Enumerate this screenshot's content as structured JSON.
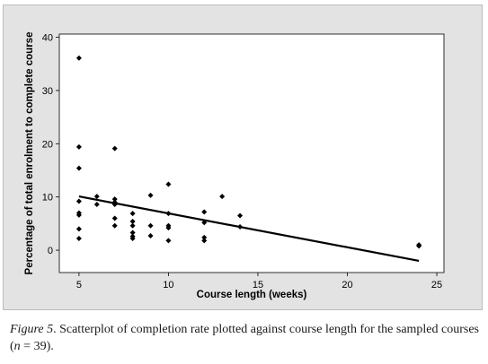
{
  "chart_data": {
    "type": "scatter",
    "title": "",
    "xlabel": "Course length (weeks)",
    "ylabel": "Percentage of total enrolment to complete course",
    "xlim": [
      3.9,
      25.4
    ],
    "ylim": [
      -4.2,
      40.6
    ],
    "xticks": [
      5,
      10,
      15,
      20,
      25
    ],
    "yticks": [
      0,
      10,
      20,
      30,
      40
    ],
    "grid": false,
    "legend": "none",
    "marker_color": "#000000",
    "points": [
      {
        "x": 5,
        "y": 36.1
      },
      {
        "x": 5,
        "y": 19.4
      },
      {
        "x": 5,
        "y": 15.4
      },
      {
        "x": 5,
        "y": 9.2
      },
      {
        "x": 5,
        "y": 7.0
      },
      {
        "x": 5,
        "y": 6.6
      },
      {
        "x": 5,
        "y": 4.0
      },
      {
        "x": 5,
        "y": 2.2
      },
      {
        "x": 6,
        "y": 10.1
      },
      {
        "x": 6,
        "y": 8.6
      },
      {
        "x": 7,
        "y": 19.1
      },
      {
        "x": 7,
        "y": 9.6
      },
      {
        "x": 7,
        "y": 9.0
      },
      {
        "x": 7,
        "y": 8.6
      },
      {
        "x": 7,
        "y": 6.0
      },
      {
        "x": 7,
        "y": 4.6
      },
      {
        "x": 8,
        "y": 6.9
      },
      {
        "x": 8,
        "y": 5.4
      },
      {
        "x": 8,
        "y": 4.6
      },
      {
        "x": 8,
        "y": 3.3
      },
      {
        "x": 8,
        "y": 2.6
      },
      {
        "x": 8,
        "y": 2.2
      },
      {
        "x": 9,
        "y": 10.3
      },
      {
        "x": 9,
        "y": 4.6
      },
      {
        "x": 9,
        "y": 2.7
      },
      {
        "x": 10,
        "y": 12.4
      },
      {
        "x": 10,
        "y": 6.9
      },
      {
        "x": 10,
        "y": 4.6
      },
      {
        "x": 10,
        "y": 4.2
      },
      {
        "x": 10,
        "y": 1.8
      },
      {
        "x": 12,
        "y": 7.2
      },
      {
        "x": 12,
        "y": 5.2
      },
      {
        "x": 12,
        "y": 2.4
      },
      {
        "x": 12,
        "y": 1.8
      },
      {
        "x": 13,
        "y": 10.1
      },
      {
        "x": 14,
        "y": 6.5
      },
      {
        "x": 14,
        "y": 4.4
      },
      {
        "x": 24,
        "y": 1.0
      },
      {
        "x": 24,
        "y": 0.8
      }
    ],
    "trendline": {
      "x": [
        5,
        24
      ],
      "y": [
        10.1,
        -2.0
      ]
    }
  },
  "caption": {
    "figure_label": "Figure 5",
    "text_part1": ". Scatterplot of completion rate plotted against course length for the sampled courses (",
    "n_var": "n",
    "text_part2": " = 39)."
  }
}
